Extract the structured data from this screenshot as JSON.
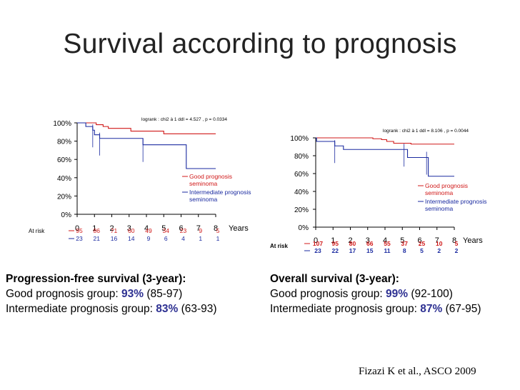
{
  "title": "Survival according to prognosis",
  "colors": {
    "good": "#d01818",
    "intermediate": "#1a2aa0",
    "pct": "#2e3192"
  },
  "chart_data": [
    {
      "type": "line",
      "subtype": "kaplan-meier",
      "title": "",
      "test_label": "logrank : chi2 à 1 ddl = 4.527 , p = 0.0334",
      "xlabel": "Years",
      "ylabel": "",
      "xlim": [
        0,
        8
      ],
      "ylim": [
        0,
        100
      ],
      "x_ticks": [
        0,
        1,
        2,
        3,
        4,
        5,
        6,
        7,
        8
      ],
      "y_ticks": [
        0,
        20,
        40,
        60,
        80,
        100
      ],
      "y_tick_labels": [
        "0%",
        "20%",
        "40%",
        "60%",
        "80%",
        "100%"
      ],
      "series": [
        {
          "name": "Good prognosis seminoma",
          "legend_lines": [
            "Good prognosis",
            "seminoma"
          ],
          "steps": [
            [
              0,
              100
            ],
            [
              1.1,
              98
            ],
            [
              1.5,
              96
            ],
            [
              1.8,
              94
            ],
            [
              3,
              94
            ],
            [
              3.1,
              91
            ],
            [
              4.9,
              91
            ],
            [
              5,
              88
            ],
            [
              8,
              88
            ]
          ]
        },
        {
          "name": "Intermediate prognosis seminoma",
          "legend_lines": [
            "Intermediate prognosis",
            "seminoma"
          ],
          "steps": [
            [
              0,
              100
            ],
            [
              0.5,
              96
            ],
            [
              0.9,
              92
            ],
            [
              1,
              87
            ],
            [
              1.3,
              83
            ],
            [
              3.7,
              83
            ],
            [
              3.8,
              76
            ],
            [
              6.2,
              76
            ],
            [
              6.3,
              50
            ],
            [
              8,
              50
            ]
          ]
        }
      ],
      "at_risk_label": "At risk",
      "at_risk": [
        {
          "name": "Good prognosis seminoma",
          "values": [
            "95",
            "86",
            "71",
            "60",
            "49",
            "34",
            "23",
            "9",
            "5"
          ]
        },
        {
          "name": "Intermediate prognosis seminoma",
          "values": [
            "23",
            "21",
            "16",
            "14",
            "9",
            "6",
            "4",
            "1",
            "1"
          ]
        }
      ]
    },
    {
      "type": "line",
      "subtype": "kaplan-meier",
      "title": "",
      "test_label": "logrank : chi2 à 1 ddl = 8.106 , p = 0.0044",
      "xlabel": "Years",
      "ylabel": "",
      "xlim": [
        0,
        8
      ],
      "ylim": [
        0,
        100
      ],
      "x_ticks": [
        0,
        1,
        2,
        3,
        4,
        5,
        6,
        7,
        8
      ],
      "y_ticks": [
        0,
        20,
        40,
        60,
        80,
        100
      ],
      "y_tick_labels": [
        "0%",
        "20%",
        "40%",
        "60%",
        "80%",
        "100%"
      ],
      "series": [
        {
          "name": "Good prognosis seminoma",
          "legend_lines": [
            "Good prognosis",
            "seminoma"
          ],
          "steps": [
            [
              0,
              100
            ],
            [
              3,
              100
            ],
            [
              3.3,
              99
            ],
            [
              3.8,
              98
            ],
            [
              4.1,
              96
            ],
            [
              4.5,
              94
            ],
            [
              5.3,
              94
            ],
            [
              5.5,
              93
            ],
            [
              8,
              93
            ]
          ]
        },
        {
          "name": "Intermediate prognosis seminoma",
          "legend_lines": [
            "Intermediate prognosis",
            "seminoma"
          ],
          "steps": [
            [
              0,
              100
            ],
            [
              0.05,
              96
            ],
            [
              1.1,
              91
            ],
            [
              1.6,
              87
            ],
            [
              5.1,
              87
            ],
            [
              5.3,
              78
            ],
            [
              6.4,
              78
            ],
            [
              6.5,
              57
            ],
            [
              8,
              57
            ]
          ]
        }
      ],
      "at_risk_label": "At risk",
      "at_risk": [
        {
          "name": "Good prognosis seminoma",
          "values": [
            "107",
            "95",
            "80",
            "66",
            "55",
            "37",
            "25",
            "10",
            "5"
          ]
        },
        {
          "name": "Intermediate prognosis seminoma",
          "values": [
            "23",
            "22",
            "17",
            "15",
            "11",
            "8",
            "5",
            "2",
            "2"
          ]
        }
      ]
    }
  ],
  "summaries": {
    "pfs": {
      "heading": "Progression-free survival (3-year):",
      "good_label": "Good prognosis group:",
      "good_pct": "93%",
      "good_ci": "(85-97)",
      "inter_label": "Intermediate prognosis group:",
      "inter_pct": "83%",
      "inter_ci": "(63-93)"
    },
    "os": {
      "heading": "Overall survival (3-year):",
      "good_label": "Good prognosis group:",
      "good_pct": "99%",
      "good_ci": "(92-100)",
      "inter_label": "Intermediate prognosis group:",
      "inter_pct": "87%",
      "inter_ci": "(67-95)"
    }
  },
  "citation": "Fizazi K et al., ASCO 2009"
}
